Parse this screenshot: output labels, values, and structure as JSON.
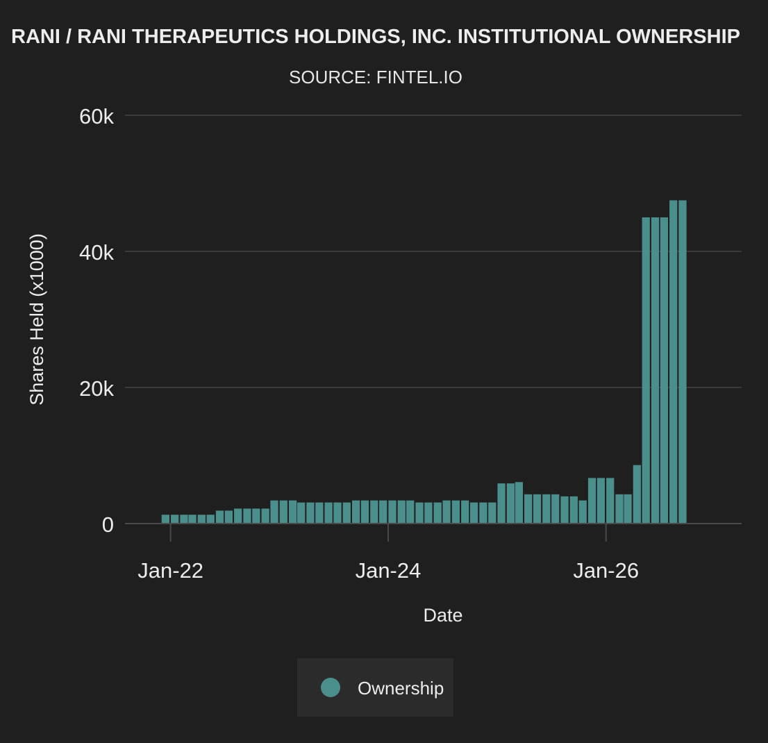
{
  "chart_data": {
    "type": "bar",
    "title": "RANI / RANI THERAPEUTICS HOLDINGS, INC. INSTITUTIONAL OWNERSHIP",
    "subtitle": "SOURCE: FINTEL.IO",
    "xlabel": "Date",
    "ylabel": "Shares Held (x1000)",
    "x_range": [
      "2021-08-01",
      "2027-04-01"
    ],
    "ylim": [
      -800,
      60000
    ],
    "yticks": [
      0,
      20000,
      40000,
      60000
    ],
    "ytick_labels": [
      "0",
      "20k",
      "40k",
      "60k"
    ],
    "xticks": [
      "2022-01-01",
      "2024-01-01",
      "2026-01-01"
    ],
    "xtick_labels": [
      "Jan-22",
      "Jan-24",
      "Jan-26"
    ],
    "grid": true,
    "legend_position": "bottom-center",
    "bar_color": "#4b8f8c",
    "series": [
      {
        "name": "Ownership",
        "x": [
          "2021-12-15",
          "2022-01-15",
          "2022-02-15",
          "2022-03-15",
          "2022-04-15",
          "2022-05-15",
          "2022-06-15",
          "2022-07-15",
          "2022-08-15",
          "2022-09-15",
          "2022-10-15",
          "2022-11-15",
          "2022-12-15",
          "2023-01-15",
          "2023-02-15",
          "2023-03-15",
          "2023-04-15",
          "2023-05-15",
          "2023-06-15",
          "2023-07-15",
          "2023-08-15",
          "2023-09-15",
          "2023-10-15",
          "2023-11-15",
          "2023-12-15",
          "2024-01-15",
          "2024-02-15",
          "2024-03-15",
          "2024-04-15",
          "2024-05-15",
          "2024-06-15",
          "2024-07-15",
          "2024-08-15",
          "2024-09-15",
          "2024-10-15",
          "2024-11-15",
          "2024-12-15",
          "2025-01-15",
          "2025-02-15",
          "2025-03-15",
          "2025-04-15",
          "2025-05-15",
          "2025-06-15",
          "2025-07-15",
          "2025-08-15",
          "2025-09-15",
          "2025-10-15",
          "2025-11-15",
          "2025-12-15",
          "2026-01-15",
          "2026-02-15",
          "2026-03-15",
          "2026-04-15",
          "2026-05-15",
          "2026-06-15",
          "2026-07-15",
          "2026-08-15",
          "2026-09-15"
        ],
        "values": [
          1300,
          1300,
          1300,
          1300,
          1300,
          1300,
          1900,
          1900,
          2200,
          2200,
          2200,
          2200,
          3400,
          3400,
          3400,
          3100,
          3100,
          3100,
          3100,
          3100,
          3100,
          3400,
          3400,
          3400,
          3400,
          3400,
          3400,
          3400,
          3100,
          3100,
          3100,
          3400,
          3400,
          3400,
          3100,
          3100,
          3100,
          5900,
          5900,
          6100,
          4300,
          4300,
          4300,
          4300,
          4000,
          4000,
          3400,
          6700,
          6700,
          6700,
          4300,
          4300,
          8600,
          45000,
          45000,
          45000,
          47500,
          47500
        ]
      }
    ]
  },
  "legend": {
    "label": "Ownership"
  }
}
